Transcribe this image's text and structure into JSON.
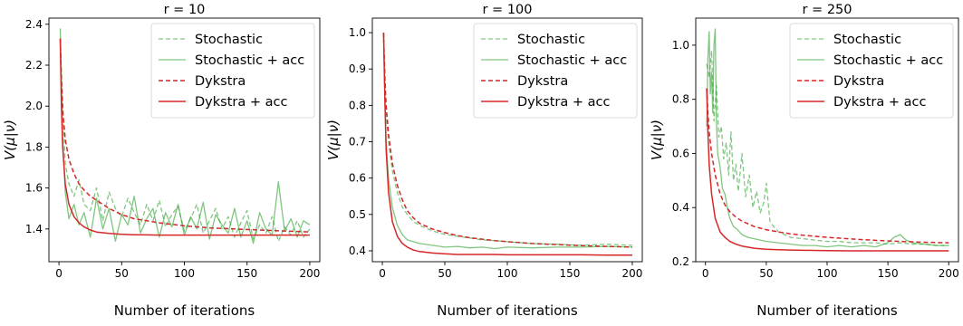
{
  "chart_data": [
    {
      "type": "line",
      "title": "r = 10",
      "xlabel": "Number of iterations",
      "ylabel": "V(μ|ν)",
      "xlim": [
        -8,
        208
      ],
      "ylim": [
        1.24,
        2.43
      ],
      "xticks": [
        0,
        50,
        100,
        150,
        200
      ],
      "yticks": [
        1.4,
        1.6,
        1.8,
        2.0,
        2.2,
        2.4
      ],
      "yticklabels": [
        "1.4",
        "1.6",
        "1.8",
        "2.0",
        "2.2",
        "2.4"
      ],
      "legend_position": "top-right",
      "series": [
        {
          "name": "Stochastic",
          "color": "#2ca02c",
          "dash": "dashed",
          "x": [
            1,
            3,
            5,
            8,
            12,
            16,
            20,
            25,
            30,
            35,
            40,
            45,
            50,
            55,
            60,
            65,
            70,
            75,
            80,
            85,
            90,
            95,
            100,
            105,
            110,
            115,
            120,
            125,
            130,
            135,
            140,
            145,
            150,
            155,
            160,
            165,
            170,
            175,
            180,
            185,
            190,
            195,
            200
          ],
          "y": [
            2.3,
            2.02,
            1.72,
            1.62,
            1.56,
            1.64,
            1.52,
            1.49,
            1.6,
            1.44,
            1.58,
            1.5,
            1.46,
            1.55,
            1.48,
            1.42,
            1.52,
            1.44,
            1.54,
            1.41,
            1.47,
            1.51,
            1.39,
            1.45,
            1.52,
            1.38,
            1.44,
            1.5,
            1.4,
            1.46,
            1.36,
            1.43,
            1.49,
            1.35,
            1.42,
            1.38,
            1.46,
            1.34,
            1.41,
            1.37,
            1.44,
            1.36,
            1.4
          ]
        },
        {
          "name": "Stochastic + acc",
          "color": "#2ca02c",
          "dash": "solid",
          "x": [
            1,
            3,
            5,
            8,
            12,
            16,
            20,
            25,
            30,
            35,
            40,
            45,
            50,
            55,
            60,
            65,
            70,
            75,
            80,
            85,
            90,
            95,
            100,
            105,
            110,
            115,
            120,
            125,
            130,
            135,
            140,
            145,
            150,
            155,
            160,
            165,
            170,
            175,
            180,
            185,
            190,
            195,
            200
          ],
          "y": [
            2.38,
            1.85,
            1.58,
            1.45,
            1.52,
            1.42,
            1.48,
            1.36,
            1.55,
            1.4,
            1.5,
            1.34,
            1.47,
            1.42,
            1.56,
            1.38,
            1.45,
            1.5,
            1.36,
            1.48,
            1.41,
            1.52,
            1.37,
            1.46,
            1.4,
            1.53,
            1.35,
            1.47,
            1.42,
            1.38,
            1.5,
            1.36,
            1.44,
            1.33,
            1.48,
            1.4,
            1.37,
            1.63,
            1.39,
            1.45,
            1.36,
            1.44,
            1.42
          ]
        },
        {
          "name": "Dykstra",
          "color": "#d62728",
          "dash": "dashed",
          "x": [
            1,
            2,
            3,
            5,
            8,
            12,
            16,
            20,
            25,
            30,
            40,
            50,
            60,
            70,
            80,
            100,
            120,
            140,
            160,
            180,
            200
          ],
          "y": [
            2.33,
            2.12,
            1.98,
            1.84,
            1.74,
            1.67,
            1.62,
            1.59,
            1.56,
            1.54,
            1.5,
            1.47,
            1.45,
            1.44,
            1.43,
            1.415,
            1.405,
            1.4,
            1.395,
            1.39,
            1.385
          ]
        },
        {
          "name": "Dykstra + acc",
          "color": "#d62728",
          "dash": "solid",
          "x": [
            1,
            2,
            3,
            5,
            8,
            12,
            16,
            20,
            25,
            30,
            40,
            50,
            60,
            70,
            80,
            100,
            120,
            140,
            160,
            180,
            200
          ],
          "y": [
            2.33,
            2.0,
            1.8,
            1.62,
            1.52,
            1.46,
            1.43,
            1.41,
            1.395,
            1.385,
            1.378,
            1.374,
            1.372,
            1.371,
            1.37,
            1.37,
            1.37,
            1.37,
            1.37,
            1.37,
            1.37
          ]
        }
      ]
    },
    {
      "type": "line",
      "title": "r = 100",
      "xlabel": "Number of iterations",
      "ylabel": "V(μ|ν)",
      "xlim": [
        -8,
        208
      ],
      "ylim": [
        0.37,
        1.04
      ],
      "xticks": [
        0,
        50,
        100,
        150,
        200
      ],
      "yticks": [
        0.4,
        0.5,
        0.6,
        0.7,
        0.8,
        0.9,
        1.0
      ],
      "yticklabels": [
        "0.4",
        "0.5",
        "0.6",
        "0.7",
        "0.8",
        "0.9",
        "1.0"
      ],
      "legend_position": "top-right",
      "series": [
        {
          "name": "Stochastic",
          "color": "#2ca02c",
          "dash": "dashed",
          "x": [
            1,
            2,
            3,
            5,
            8,
            12,
            16,
            20,
            25,
            30,
            40,
            50,
            60,
            70,
            80,
            90,
            100,
            120,
            140,
            160,
            180,
            200
          ],
          "y": [
            1.0,
            0.86,
            0.78,
            0.7,
            0.62,
            0.56,
            0.52,
            0.5,
            0.48,
            0.47,
            0.455,
            0.445,
            0.44,
            0.435,
            0.43,
            0.428,
            0.425,
            0.42,
            0.418,
            0.415,
            0.418,
            0.415
          ]
        },
        {
          "name": "Stochastic + acc",
          "color": "#2ca02c",
          "dash": "solid",
          "x": [
            1,
            2,
            3,
            5,
            8,
            12,
            16,
            20,
            25,
            30,
            40,
            50,
            60,
            70,
            80,
            90,
            100,
            120,
            140,
            160,
            180,
            200
          ],
          "y": [
            1.0,
            0.83,
            0.7,
            0.6,
            0.52,
            0.47,
            0.445,
            0.43,
            0.425,
            0.42,
            0.415,
            0.41,
            0.412,
            0.408,
            0.41,
            0.406,
            0.41,
            0.408,
            0.41,
            0.41,
            0.412,
            0.41
          ]
        },
        {
          "name": "Dykstra",
          "color": "#d62728",
          "dash": "dashed",
          "x": [
            1,
            2,
            3,
            5,
            8,
            12,
            16,
            20,
            25,
            30,
            40,
            50,
            60,
            70,
            80,
            90,
            100,
            120,
            140,
            160,
            180,
            200
          ],
          "y": [
            1.0,
            0.88,
            0.8,
            0.72,
            0.64,
            0.58,
            0.54,
            0.51,
            0.49,
            0.475,
            0.46,
            0.45,
            0.442,
            0.436,
            0.432,
            0.428,
            0.425,
            0.42,
            0.417,
            0.414,
            0.412,
            0.41
          ]
        },
        {
          "name": "Dykstra + acc",
          "color": "#d62728",
          "dash": "solid",
          "x": [
            1,
            2,
            3,
            5,
            8,
            12,
            16,
            20,
            25,
            30,
            40,
            50,
            60,
            70,
            80,
            90,
            100,
            120,
            140,
            160,
            180,
            200
          ],
          "y": [
            1.0,
            0.82,
            0.68,
            0.56,
            0.48,
            0.44,
            0.42,
            0.41,
            0.402,
            0.398,
            0.394,
            0.392,
            0.39,
            0.39,
            0.39,
            0.39,
            0.389,
            0.389,
            0.389,
            0.389,
            0.388,
            0.388
          ]
        }
      ]
    },
    {
      "type": "line",
      "title": "r = 250",
      "xlabel": "Number of iterations",
      "ylabel": "V(μ|ν)",
      "xlim": [
        -8,
        208
      ],
      "ylim": [
        0.2,
        1.1
      ],
      "xticks": [
        0,
        50,
        100,
        150,
        200
      ],
      "yticks": [
        0.2,
        0.4,
        0.6,
        0.8,
        1.0
      ],
      "yticklabels": [
        "0.2",
        "0.4",
        "0.6",
        "0.8",
        "1.0"
      ],
      "legend_position": "top-right",
      "series": [
        {
          "name": "Stochastic",
          "color": "#2ca02c",
          "dash": "dashed",
          "x": [
            1,
            3,
            5,
            7,
            9,
            11,
            13,
            15,
            17,
            19,
            21,
            23,
            25,
            27,
            30,
            33,
            36,
            39,
            42,
            45,
            48,
            50,
            53,
            56,
            60,
            65,
            70,
            80,
            90,
            100,
            110,
            120,
            130,
            140,
            150,
            160,
            170,
            180,
            190,
            200
          ],
          "y": [
            0.93,
            0.88,
            0.98,
            0.72,
            0.85,
            0.66,
            0.7,
            0.58,
            0.64,
            0.52,
            0.68,
            0.5,
            0.56,
            0.46,
            0.6,
            0.44,
            0.52,
            0.4,
            0.46,
            0.38,
            0.42,
            0.49,
            0.35,
            0.33,
            0.31,
            0.3,
            0.29,
            0.285,
            0.28,
            0.275,
            0.275,
            0.27,
            0.27,
            0.27,
            0.265,
            0.27,
            0.265,
            0.265,
            0.26,
            0.26
          ]
        },
        {
          "name": "Stochastic + acc",
          "color": "#2ca02c",
          "dash": "solid",
          "x": [
            1,
            2,
            3,
            4,
            5,
            6,
            7,
            8,
            9,
            10,
            12,
            14,
            16,
            18,
            20,
            23,
            26,
            30,
            35,
            40,
            50,
            60,
            70,
            80,
            90,
            100,
            110,
            120,
            130,
            140,
            150,
            155,
            160,
            165,
            170,
            180,
            190,
            200
          ],
          "y": [
            0.7,
            0.95,
            1.05,
            0.82,
            0.9,
            0.75,
            1.0,
            1.06,
            0.72,
            0.6,
            0.55,
            0.47,
            0.45,
            0.4,
            0.36,
            0.33,
            0.32,
            0.3,
            0.29,
            0.285,
            0.275,
            0.27,
            0.265,
            0.26,
            0.26,
            0.255,
            0.26,
            0.255,
            0.26,
            0.255,
            0.27,
            0.29,
            0.3,
            0.28,
            0.27,
            0.265,
            0.26,
            0.26
          ]
        },
        {
          "name": "Dykstra",
          "color": "#d62728",
          "dash": "dashed",
          "x": [
            1,
            2,
            3,
            5,
            8,
            12,
            16,
            20,
            25,
            30,
            40,
            50,
            60,
            70,
            80,
            100,
            120,
            140,
            160,
            180,
            200
          ],
          "y": [
            0.84,
            0.75,
            0.68,
            0.6,
            0.52,
            0.45,
            0.41,
            0.385,
            0.365,
            0.35,
            0.33,
            0.318,
            0.31,
            0.303,
            0.298,
            0.29,
            0.284,
            0.279,
            0.275,
            0.272,
            0.27
          ]
        },
        {
          "name": "Dykstra + acc",
          "color": "#d62728",
          "dash": "solid",
          "x": [
            1,
            2,
            3,
            5,
            8,
            12,
            16,
            20,
            25,
            30,
            40,
            50,
            60,
            70,
            80,
            100,
            120,
            140,
            160,
            180,
            200
          ],
          "y": [
            0.84,
            0.68,
            0.56,
            0.45,
            0.36,
            0.31,
            0.29,
            0.275,
            0.265,
            0.258,
            0.25,
            0.246,
            0.244,
            0.243,
            0.242,
            0.241,
            0.24,
            0.24,
            0.24,
            0.24,
            0.24
          ]
        }
      ]
    }
  ]
}
